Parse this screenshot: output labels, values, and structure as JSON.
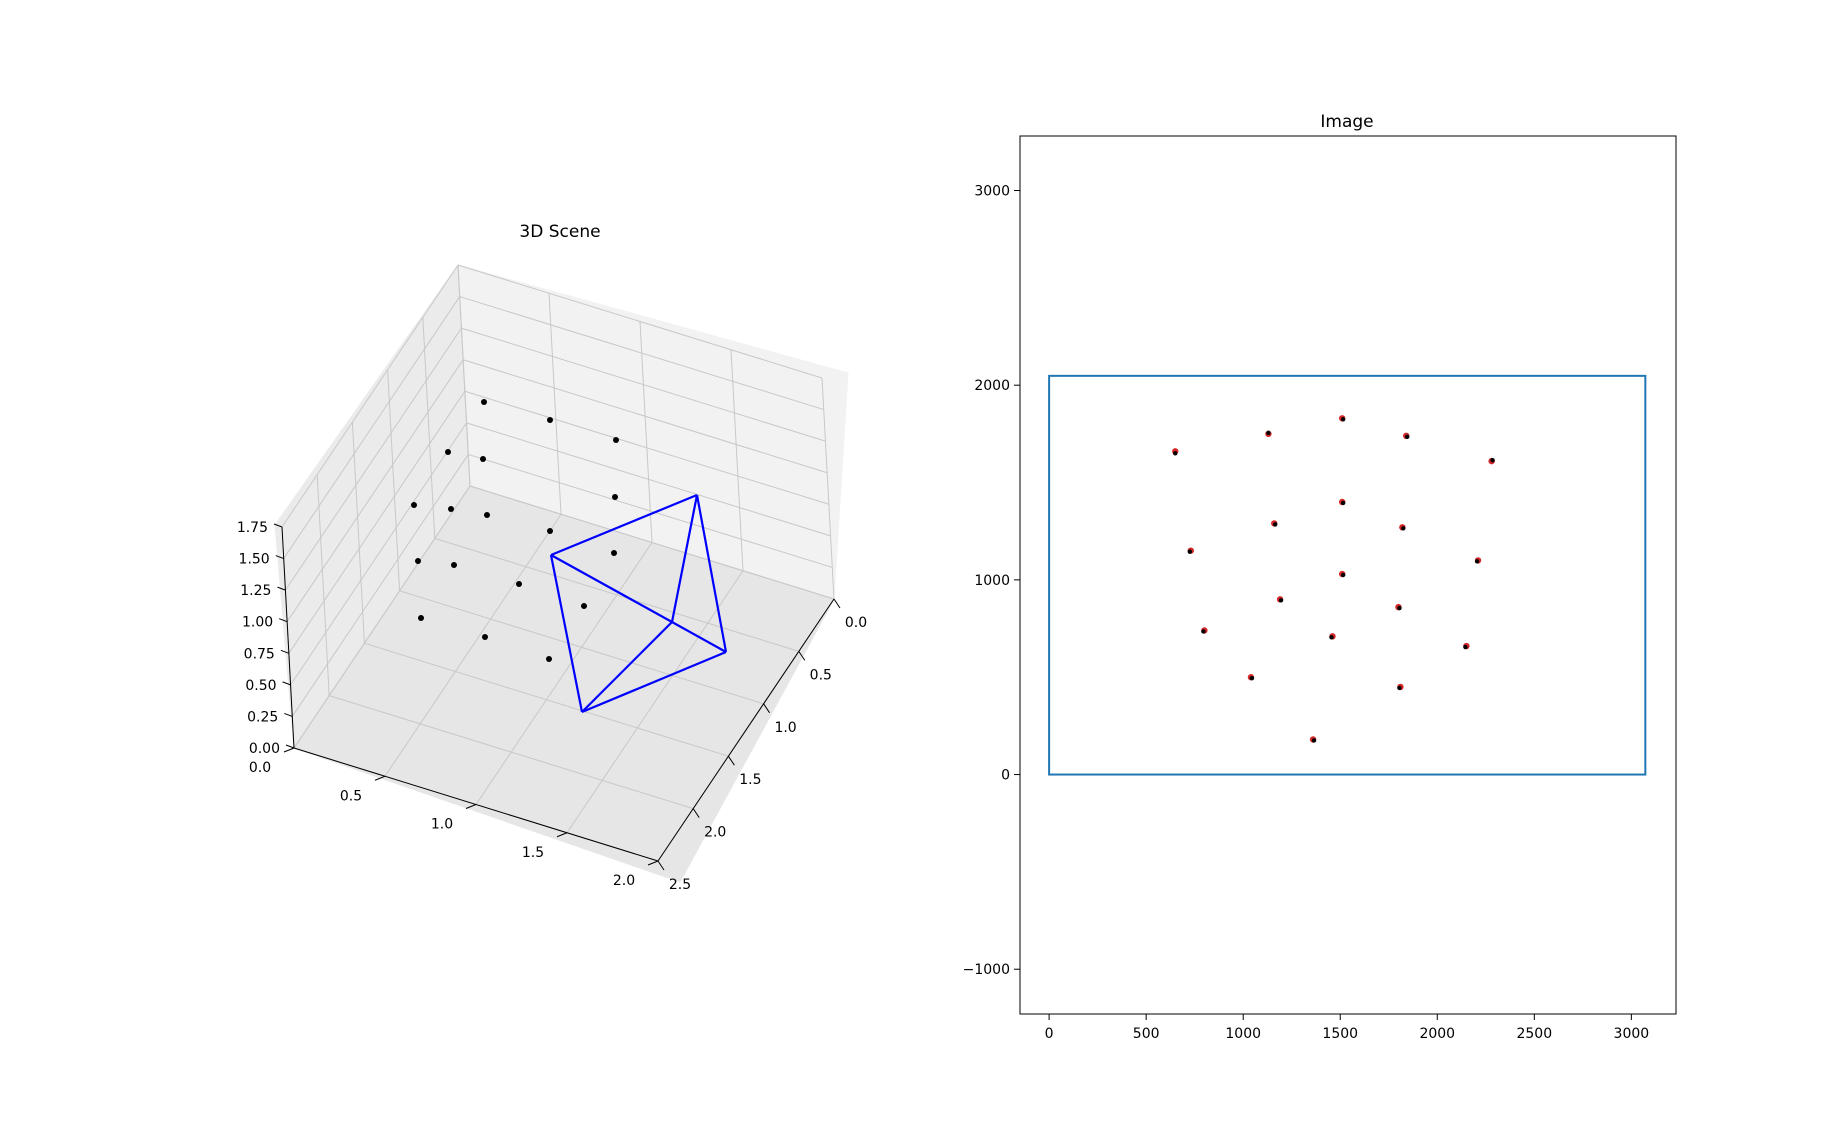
{
  "chart_data": [
    {
      "type": "scatter",
      "title": "3D Scene",
      "projection": "3d",
      "xlim": [
        0,
        2.5
      ],
      "ylim": [
        0,
        2.0
      ],
      "zlim": [
        0,
        1.75
      ],
      "x_ticks": [
        "0.0",
        "0.5",
        "1.0",
        "1.5",
        "2.0",
        "2.5"
      ],
      "y_ticks": [
        "0.0",
        "0.5",
        "1.0",
        "1.5",
        "2.0"
      ],
      "z_ticks": [
        "0.00",
        "0.25",
        "0.50",
        "0.75",
        "1.00",
        "1.25",
        "1.50",
        "1.75"
      ],
      "grid": true,
      "points_color": "#000000",
      "frustum_color": "#0000ff"
    },
    {
      "type": "scatter",
      "title": "Image",
      "xlim": [
        -150,
        3230
      ],
      "ylim": [
        -1230,
        3280
      ],
      "x_ticks": [
        "0",
        "500",
        "1000",
        "1500",
        "2000",
        "2500",
        "3000"
      ],
      "y_ticks": [
        "−1000",
        "0",
        "1000",
        "2000",
        "3000"
      ],
      "image_rect": {
        "width": 3072,
        "height": 2048,
        "color": "#1f77b4"
      },
      "series": [
        {
          "color": "#d62728",
          "points": [
            [
              650,
              1660
            ],
            [
              1130,
              1750
            ],
            [
              1510,
              1830
            ],
            [
              1840,
              1740
            ],
            [
              2280,
              1610
            ],
            [
              730,
              1150
            ],
            [
              1160,
              1290
            ],
            [
              1510,
              1400
            ],
            [
              1820,
              1270
            ],
            [
              2210,
              1100
            ],
            [
              800,
              740
            ],
            [
              1190,
              900
            ],
            [
              1510,
              1030
            ],
            [
              1800,
              860
            ],
            [
              2150,
              660
            ],
            [
              1040,
              500
            ],
            [
              1460,
              710
            ],
            [
              1810,
              450
            ],
            [
              1360,
              180
            ]
          ]
        },
        {
          "color": "#000000",
          "points": [
            [
              650,
              1650
            ],
            [
              1130,
              1755
            ],
            [
              1515,
              1825
            ],
            [
              1845,
              1735
            ],
            [
              2285,
              1615
            ],
            [
              725,
              1145
            ],
            [
              1165,
              1285
            ],
            [
              1515,
              1395
            ],
            [
              1825,
              1265
            ],
            [
              2205,
              1095
            ],
            [
              795,
              735
            ],
            [
              1195,
              895
            ],
            [
              1515,
              1025
            ],
            [
              1805,
              855
            ],
            [
              2145,
              655
            ],
            [
              1045,
              495
            ],
            [
              1455,
              705
            ],
            [
              1805,
              445
            ],
            [
              1365,
              175
            ]
          ]
        }
      ]
    }
  ]
}
